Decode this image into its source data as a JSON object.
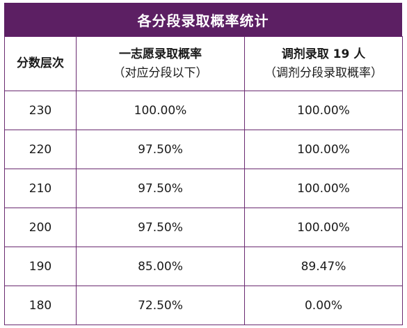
{
  "title": "各分段录取概率统计",
  "headers": {
    "col1": "分数层次",
    "col2_line1": "一志愿录取概率",
    "col2_line2": "（对应分段以下）",
    "col3_line1": "调剂录取 19 人",
    "col3_line2": "（调剂分段录取概率）"
  },
  "rows": [
    {
      "score": "230",
      "first_choice": "100.00%",
      "adjusted": "100.00%"
    },
    {
      "score": "220",
      "first_choice": "97.50%",
      "adjusted": "100.00%"
    },
    {
      "score": "210",
      "first_choice": "97.50%",
      "adjusted": "100.00%"
    },
    {
      "score": "200",
      "first_choice": "97.50%",
      "adjusted": "100.00%"
    },
    {
      "score": "190",
      "first_choice": "85.00%",
      "adjusted": "89.47%"
    },
    {
      "score": "180",
      "first_choice": "72.50%",
      "adjusted": "0.00%"
    }
  ],
  "colors": {
    "title_bg": "#5c1f63",
    "border": "#6a2a70"
  }
}
